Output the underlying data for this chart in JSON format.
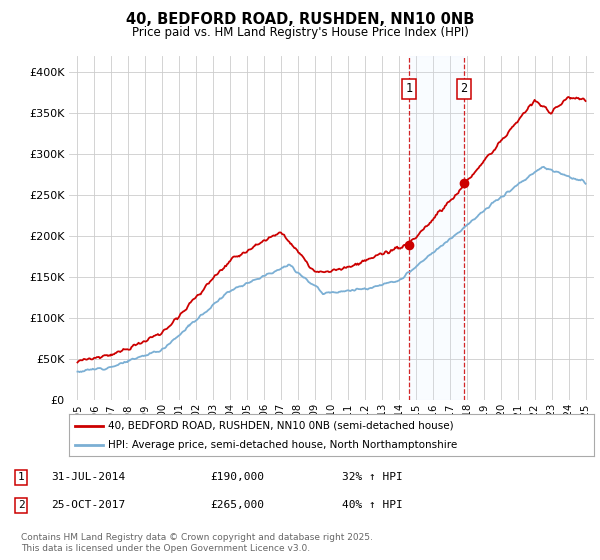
{
  "title": "40, BEDFORD ROAD, RUSHDEN, NN10 0NB",
  "subtitle": "Price paid vs. HM Land Registry's House Price Index (HPI)",
  "background_color": "#ffffff",
  "plot_bg_color": "#ffffff",
  "grid_color": "#cccccc",
  "red_line_color": "#cc0000",
  "blue_line_color": "#7bafd4",
  "shade_color": "#ddeeff",
  "marker_color": "#cc0000",
  "sale1_x": 2014.58,
  "sale2_x": 2017.82,
  "sale1_y": 190000,
  "sale2_y": 265000,
  "legend_label_red": "40, BEDFORD ROAD, RUSHDEN, NN10 0NB (semi-detached house)",
  "legend_label_blue": "HPI: Average price, semi-detached house, North Northamptonshire",
  "table_row1": [
    "1",
    "31-JUL-2014",
    "£190,000",
    "32% ↑ HPI"
  ],
  "table_row2": [
    "2",
    "25-OCT-2017",
    "£265,000",
    "40% ↑ HPI"
  ],
  "footnote": "Contains HM Land Registry data © Crown copyright and database right 2025.\nThis data is licensed under the Open Government Licence v3.0.",
  "ylim": [
    0,
    420000
  ],
  "xlim_start": 1994.5,
  "xlim_end": 2025.5,
  "yticks": [
    0,
    50000,
    100000,
    150000,
    200000,
    250000,
    300000,
    350000,
    400000
  ],
  "ytick_labels": [
    "£0",
    "£50K",
    "£100K",
    "£150K",
    "£200K",
    "£250K",
    "£300K",
    "£350K",
    "£400K"
  ],
  "noise_seed": 12,
  "noise_scale_hpi": 1200,
  "noise_scale_prop": 1800
}
